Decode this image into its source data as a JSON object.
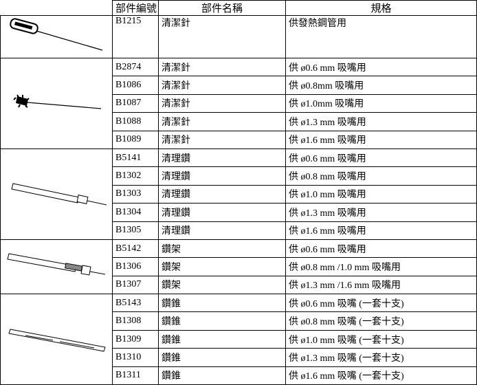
{
  "table": {
    "header": [
      "部件編號",
      "部件名稱",
      "規格"
    ],
    "rows": [
      [
        "B1215",
        "清潔針",
        "供發熱鋼管用"
      ],
      [
        "B2874",
        "清潔針",
        "供 ø0.6 mm 吸嘴用"
      ],
      [
        "B1086",
        "清潔針",
        "供 ø0.8mm 吸嘴用"
      ],
      [
        "B1087",
        "清潔針",
        "供 ø1.0mm 吸嘴用"
      ],
      [
        "B1088",
        "清潔針",
        "供 ø1.3 mm 吸嘴用"
      ],
      [
        "B1089",
        "清潔針",
        "供 ø1.6 mm 吸嘴用"
      ],
      [
        "B5141",
        "清理鑽",
        "供 ø0.6 mm 吸嘴用"
      ],
      [
        "B1302",
        "清理鑽",
        "供 ø0.8 mm 吸嘴用"
      ],
      [
        "B1303",
        "清理鑽",
        "供 ø1.0 mm 吸嘴用"
      ],
      [
        "B1304",
        "清理鑽",
        "供 ø1.3 mm 吸嘴用"
      ],
      [
        "B1305",
        "清理鑽",
        "供 ø1.6 mm 吸嘴用"
      ],
      [
        "B5142",
        "鑽架",
        "供 ø0.6 mm 吸嘴用"
      ],
      [
        "B1306",
        "鑽架",
        "供 ø0.8 mm /1.0 mm 吸嘴用"
      ],
      [
        "B1307",
        "鑽架",
        "供 ø1.3 mm /1.6 mm 吸嘴用"
      ],
      [
        "B5143",
        "鑽錐",
        "供 ø0.6 mm 吸嘴 (一套十支)"
      ],
      [
        "B1308",
        "鑽錐",
        "供 ø0.8 mm 吸嘴 (一套十支)"
      ],
      [
        "B1309",
        "鑽錐",
        "供 ø1.0 mm 吸嘴 (一套十支)"
      ],
      [
        "B1310",
        "鑽錐",
        "供 ø1.3 mm 吸嘴 (一套十支)"
      ],
      [
        "B1311",
        "鑽錐",
        "供 ø1.6 mm 吸嘴 (一套十支)"
      ]
    ]
  }
}
